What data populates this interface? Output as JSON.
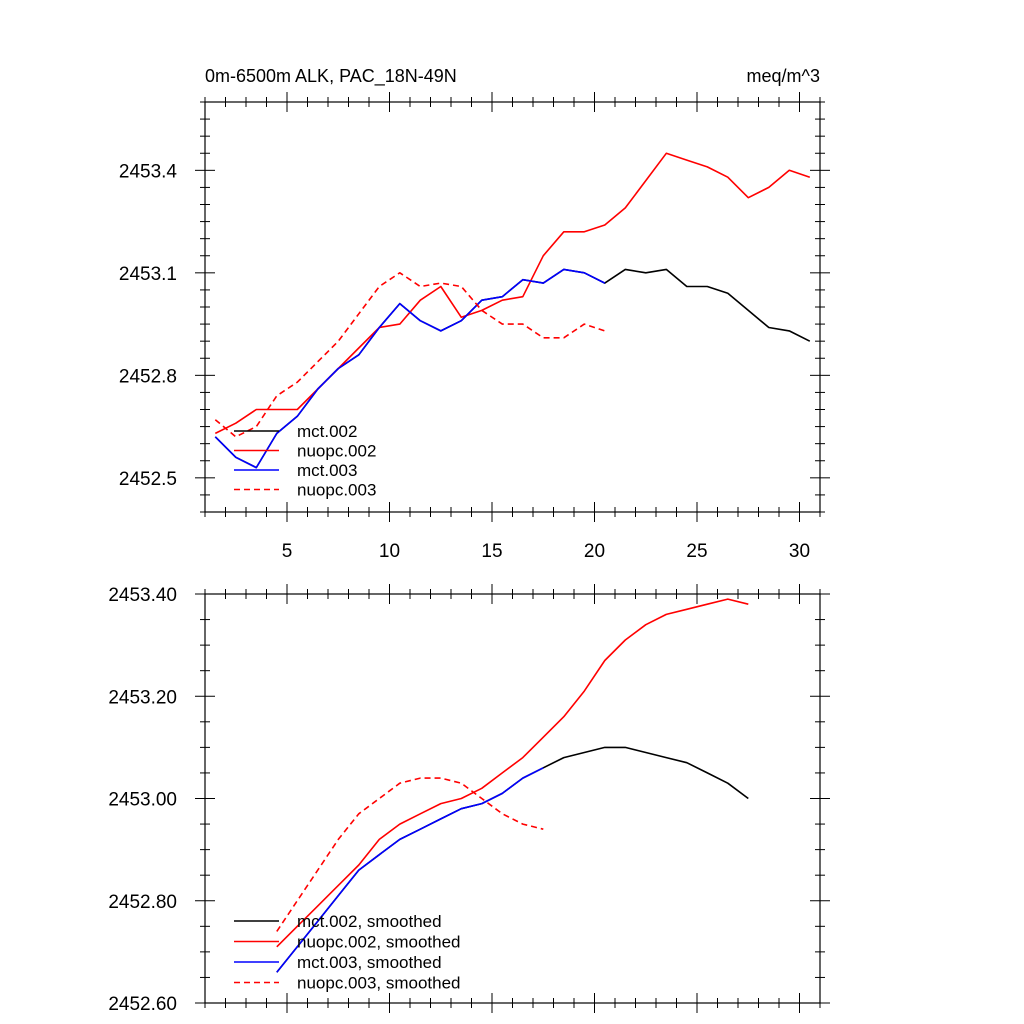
{
  "chart_data": [
    {
      "type": "line",
      "title": "0m-6500m ALK, PAC_18N-49N",
      "units": "meq/m^3",
      "xlim": [
        1,
        31
      ],
      "ylim": [
        2452.4,
        2453.6
      ],
      "x_ticks": [
        5,
        10,
        15,
        20,
        25,
        30
      ],
      "y_ticks": [
        2452.5,
        2452.8,
        2453.1,
        2453.4
      ],
      "y_tick_labels": [
        "2452.5",
        "2452.8",
        "2453.1",
        "2453.4"
      ],
      "legend_position": "bottom-left",
      "series": [
        {
          "name": "mct.002",
          "color": "#000000",
          "dash": "solid",
          "x": [
            1.5,
            2.5,
            3.5,
            4.5,
            5.5,
            6.5,
            7.5,
            8.5,
            9.5,
            10.5,
            11.5,
            12.5,
            13.5,
            14.5,
            15.5,
            16.5,
            17.5,
            18.5,
            19.5,
            20.5,
            21.5,
            22.5,
            23.5,
            24.5,
            25.5,
            26.5,
            27.5,
            28.5,
            29.5,
            30.5
          ],
          "values": [
            2452.62,
            2452.56,
            2452.53,
            2452.63,
            2452.68,
            2452.76,
            2452.82,
            2452.86,
            2452.94,
            2453.01,
            2452.96,
            2452.93,
            2452.96,
            2453.02,
            2453.03,
            2453.08,
            2453.07,
            2453.11,
            2453.1,
            2453.07,
            2453.11,
            2453.1,
            2453.11,
            2453.06,
            2453.06,
            2453.04,
            2452.99,
            2452.94,
            2452.93,
            2452.9
          ]
        },
        {
          "name": "nuopc.002",
          "color": "#ff0000",
          "dash": "solid",
          "x": [
            1.5,
            2.5,
            3.5,
            4.5,
            5.5,
            6.5,
            7.5,
            8.5,
            9.5,
            10.5,
            11.5,
            12.5,
            13.5,
            14.5,
            15.5,
            16.5,
            17.5,
            18.5,
            19.5,
            20.5,
            21.5,
            22.5,
            23.5,
            24.5,
            25.5,
            26.5,
            27.5,
            28.5,
            29.5,
            30.5
          ],
          "values": [
            2452.63,
            2452.66,
            2452.7,
            2452.7,
            2452.7,
            2452.76,
            2452.82,
            2452.88,
            2452.94,
            2452.95,
            2453.02,
            2453.06,
            2452.97,
            2452.99,
            2453.02,
            2453.03,
            2453.15,
            2453.22,
            2453.22,
            2453.24,
            2453.29,
            2453.37,
            2453.45,
            2453.43,
            2453.41,
            2453.38,
            2453.32,
            2453.35,
            2453.4,
            2453.38
          ]
        },
        {
          "name": "mct.003",
          "color": "#0000ff",
          "dash": "solid",
          "x": [
            1.5,
            2.5,
            3.5,
            4.5,
            5.5,
            6.5,
            7.5,
            8.5,
            9.5,
            10.5,
            11.5,
            12.5,
            13.5,
            14.5,
            15.5,
            16.5,
            17.5,
            18.5,
            19.5,
            20.5
          ],
          "values": [
            2452.62,
            2452.56,
            2452.53,
            2452.63,
            2452.68,
            2452.76,
            2452.82,
            2452.86,
            2452.94,
            2453.01,
            2452.96,
            2452.93,
            2452.96,
            2453.02,
            2453.03,
            2453.08,
            2453.07,
            2453.11,
            2453.1,
            2453.07
          ]
        },
        {
          "name": "nuopc.003",
          "color": "#ff0000",
          "dash": "dashed",
          "x": [
            1.5,
            2.5,
            3.5,
            4.5,
            5.5,
            6.5,
            7.5,
            8.5,
            9.5,
            10.5,
            11.5,
            12.5,
            13.5,
            14.5,
            15.5,
            16.5,
            17.5,
            18.5,
            19.5,
            20.5
          ],
          "values": [
            2452.67,
            2452.62,
            2452.65,
            2452.74,
            2452.78,
            2452.84,
            2452.9,
            2452.98,
            2453.06,
            2453.1,
            2453.06,
            2453.07,
            2453.06,
            2452.99,
            2452.95,
            2452.95,
            2452.91,
            2452.91,
            2452.95,
            2452.93
          ]
        }
      ]
    },
    {
      "type": "line",
      "xlim": [
        1,
        31
      ],
      "ylim": [
        2452.6,
        2453.4
      ],
      "x_ticks": [
        5,
        10,
        15,
        20,
        25,
        30
      ],
      "y_ticks": [
        2452.6,
        2452.8,
        2453.0,
        2453.2,
        2453.4
      ],
      "y_tick_labels": [
        "2452.60",
        "2452.80",
        "2453.00",
        "2453.20",
        "2453.40"
      ],
      "legend_position": "bottom-left",
      "series": [
        {
          "name": "mct.002, smoothed",
          "color": "#000000",
          "dash": "solid",
          "x": [
            4.5,
            5.5,
            6.5,
            7.5,
            8.5,
            9.5,
            10.5,
            11.5,
            12.5,
            13.5,
            14.5,
            15.5,
            16.5,
            17.5,
            18.5,
            19.5,
            20.5,
            21.5,
            22.5,
            23.5,
            24.5,
            25.5,
            26.5,
            27.5
          ],
          "values": [
            2452.66,
            2452.71,
            2452.76,
            2452.81,
            2452.86,
            2452.89,
            2452.92,
            2452.94,
            2452.96,
            2452.98,
            2452.99,
            2453.01,
            2453.04,
            2453.06,
            2453.08,
            2453.09,
            2453.1,
            2453.1,
            2453.09,
            2453.08,
            2453.07,
            2453.05,
            2453.03,
            2453.0
          ]
        },
        {
          "name": "nuopc.002, smoothed",
          "color": "#ff0000",
          "dash": "solid",
          "x": [
            4.5,
            5.5,
            6.5,
            7.5,
            8.5,
            9.5,
            10.5,
            11.5,
            12.5,
            13.5,
            14.5,
            15.5,
            16.5,
            17.5,
            18.5,
            19.5,
            20.5,
            21.5,
            22.5,
            23.5,
            24.5,
            25.5,
            26.5,
            27.5
          ],
          "values": [
            2452.71,
            2452.75,
            2452.79,
            2452.83,
            2452.87,
            2452.92,
            2452.95,
            2452.97,
            2452.99,
            2453.0,
            2453.02,
            2453.05,
            2453.08,
            2453.12,
            2453.16,
            2453.21,
            2453.27,
            2453.31,
            2453.34,
            2453.36,
            2453.37,
            2453.38,
            2453.39,
            2453.38
          ]
        },
        {
          "name": "mct.003, smoothed",
          "color": "#0000ff",
          "dash": "solid",
          "x": [
            4.5,
            5.5,
            6.5,
            7.5,
            8.5,
            9.5,
            10.5,
            11.5,
            12.5,
            13.5,
            14.5,
            15.5,
            16.5,
            17.5
          ],
          "values": [
            2452.66,
            2452.71,
            2452.76,
            2452.81,
            2452.86,
            2452.89,
            2452.92,
            2452.94,
            2452.96,
            2452.98,
            2452.99,
            2453.01,
            2453.04,
            2453.06
          ]
        },
        {
          "name": "nuopc.003, smoothed",
          "color": "#ff0000",
          "dash": "dashed",
          "x": [
            4.5,
            5.5,
            6.5,
            7.5,
            8.5,
            9.5,
            10.5,
            11.5,
            12.5,
            13.5,
            14.5,
            15.5,
            16.5,
            17.5
          ],
          "values": [
            2452.74,
            2452.8,
            2452.86,
            2452.92,
            2452.97,
            2453.0,
            2453.03,
            2453.04,
            2453.04,
            2453.03,
            2453.0,
            2452.97,
            2452.95,
            2452.94
          ]
        }
      ]
    }
  ]
}
